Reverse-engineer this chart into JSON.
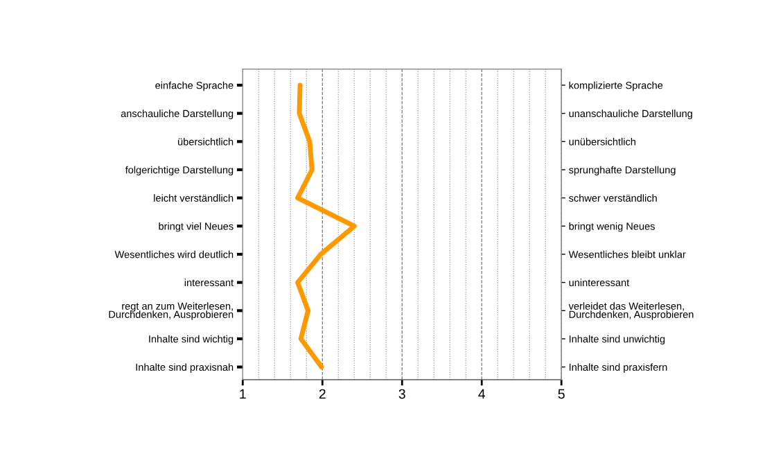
{
  "chart_data": {
    "type": "line",
    "orientation": "horizontal",
    "categories": [
      "einfache Sprache",
      "anschauliche Darstellung",
      "übersichtlich",
      "folgerichtige Darstellung",
      "leicht verständlich",
      "bringt viel Neues",
      "Wesentliches wird deutlich",
      "interessant",
      "regt an zum Weiterlesen,\nDurchdenken, Ausprobieren",
      "Inhalte sind wichtig",
      "Inhalte sind praxisnah"
    ],
    "y2_categories": [
      "komplizierte Sprache",
      "unanschauliche Darstellung",
      "unübersichtlich",
      "sprunghafte Darstellung",
      "schwer verständlich",
      "bringt wenig Neues",
      "Wesentliches bleibt unklar",
      "uninteressant",
      "verleidet das Weiterlesen,\nDurchdenken, Ausprobieren",
      "Inhalte sind unwichtig",
      "Inhalte sind praxisfern"
    ],
    "series": [
      {
        "color": "#ff9900",
        "values": [
          1.72,
          1.71,
          1.84,
          1.87,
          1.69,
          2.4,
          1.98,
          1.69,
          1.82,
          1.73,
          1.99
        ]
      }
    ],
    "xlim": [
      1,
      5
    ],
    "xticks": [
      1,
      {
        "value": 1.2,
        "label": null
      },
      {
        "value": 1.4,
        "label": null
      },
      {
        "value": 1.6,
        "label": null
      },
      {
        "value": 1.8,
        "label": null
      },
      2,
      {
        "value": 2.2,
        "label": null
      },
      {
        "value": 2.4,
        "label": null
      },
      {
        "value": 2.6,
        "label": null
      },
      {
        "value": 2.8,
        "label": null
      },
      3,
      {
        "value": 3.2,
        "label": null
      },
      {
        "value": 3.4,
        "label": null
      },
      {
        "value": 3.6,
        "label": null
      },
      {
        "value": 3.8,
        "label": null
      },
      4,
      {
        "value": 4.2,
        "label": null
      },
      {
        "value": 4.4,
        "label": null
      },
      {
        "value": 4.6,
        "label": null
      },
      {
        "value": 4.8,
        "label": null
      },
      5
    ],
    "grid": "x",
    "marker": "none",
    "line_style": "solid",
    "legend": false
  }
}
